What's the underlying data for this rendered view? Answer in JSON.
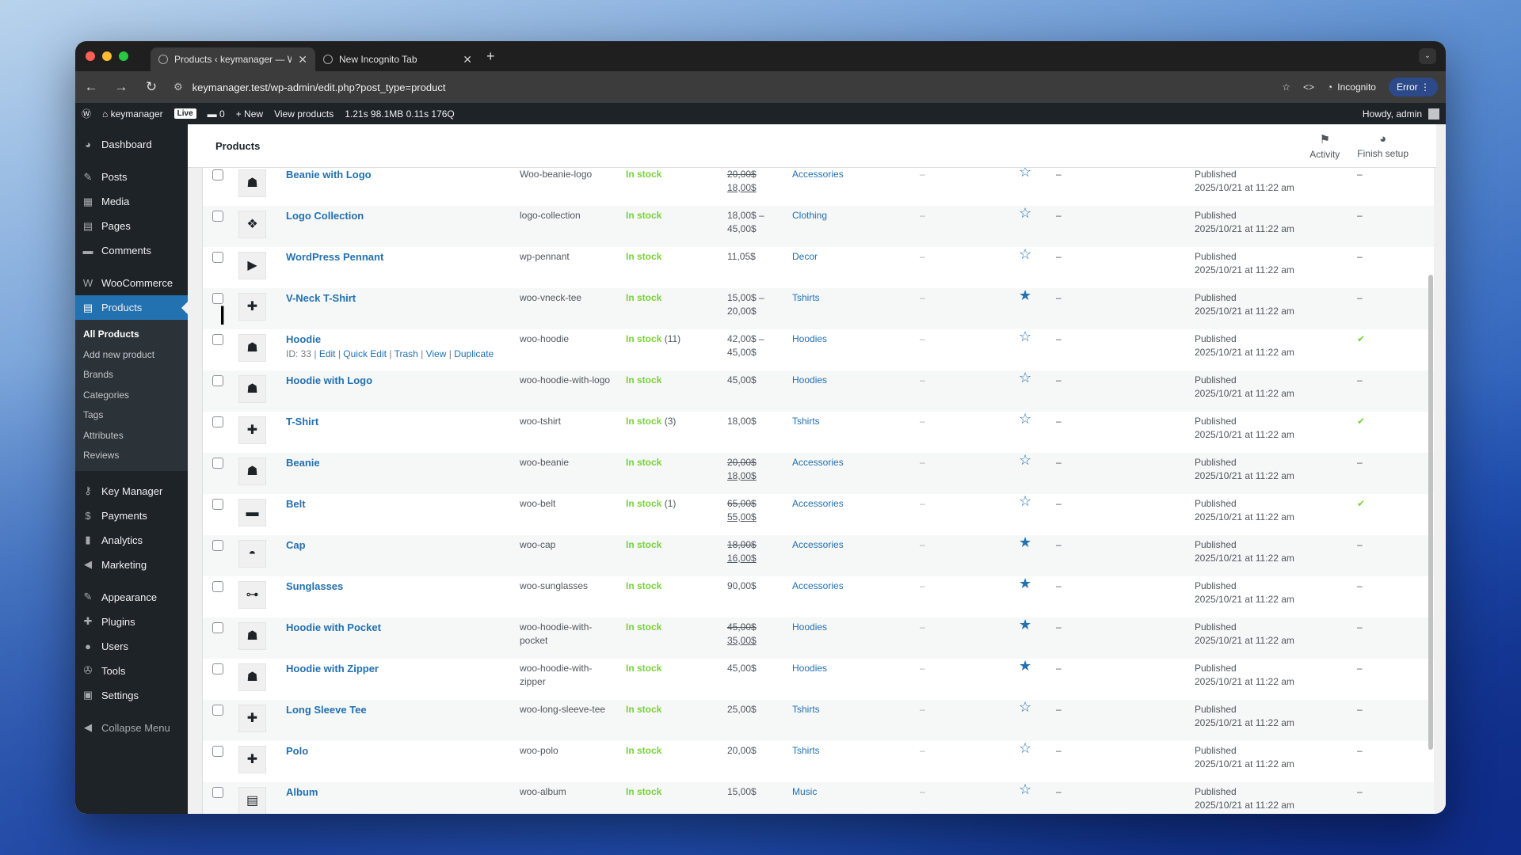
{
  "browser": {
    "tabs": [
      {
        "title": "Products ‹ keymanager — W…"
      },
      {
        "title": "New Incognito Tab"
      }
    ],
    "url": "keymanager.test/wp-admin/edit.php?post_type=product",
    "incognito_label": "Incognito",
    "error_label": "Error"
  },
  "adminbar": {
    "site": "keymanager",
    "live": "Live",
    "comments": "0",
    "new": "New",
    "view": "View products",
    "stats": "1.21s  98.1MB  0.11s  176Q",
    "howdy": "Howdy, admin"
  },
  "sidebar": {
    "groups": [
      [
        {
          "label": "Dashboard",
          "icon": "dashboard-icon",
          "glyph": "◕"
        }
      ],
      [
        {
          "label": "Posts",
          "icon": "pin-icon",
          "glyph": "✎"
        },
        {
          "label": "Media",
          "icon": "media-icon",
          "glyph": "▦"
        },
        {
          "label": "Pages",
          "icon": "pages-icon",
          "glyph": "▤"
        },
        {
          "label": "Comments",
          "icon": "comment-icon",
          "glyph": "▬"
        }
      ],
      [
        {
          "label": "WooCommerce",
          "icon": "woo-icon",
          "glyph": "W"
        },
        {
          "label": "Products",
          "icon": "archive-icon",
          "glyph": "▤",
          "current": true
        }
      ]
    ],
    "submenu": [
      "All Products",
      "Add new product",
      "Brands",
      "Categories",
      "Tags",
      "Attributes",
      "Reviews"
    ],
    "groups2": [
      [
        {
          "label": "Key Manager",
          "icon": "key-icon",
          "glyph": "⚷"
        },
        {
          "label": "Payments",
          "icon": "payments-icon",
          "glyph": "$"
        },
        {
          "label": "Analytics",
          "icon": "chart-icon",
          "glyph": "▮"
        },
        {
          "label": "Marketing",
          "icon": "megaphone-icon",
          "glyph": "◀"
        }
      ],
      [
        {
          "label": "Appearance",
          "icon": "brush-icon",
          "glyph": "✎"
        },
        {
          "label": "Plugins",
          "icon": "plugin-icon",
          "glyph": "✚"
        },
        {
          "label": "Users",
          "icon": "user-icon",
          "glyph": "●"
        },
        {
          "label": "Tools",
          "icon": "wrench-icon",
          "glyph": "✇"
        },
        {
          "label": "Settings",
          "icon": "settings-icon",
          "glyph": "▣"
        }
      ],
      [
        {
          "label": "Collapse Menu",
          "icon": "collapse-icon",
          "glyph": "◀"
        }
      ]
    ]
  },
  "header": {
    "title": "Products",
    "activity": "Activity",
    "finish": "Finish setup"
  },
  "row_actions": {
    "id": "ID: 33",
    "edit": "Edit",
    "quick": "Quick Edit",
    "trash": "Trash",
    "view": "View",
    "dup": "Duplicate"
  },
  "products": [
    {
      "name": "Beanie with Logo",
      "sku": "Woo-beanie-logo",
      "stock": "In stock",
      "stock_n": "",
      "price_old": "20,00$",
      "price": "18,00$",
      "cat": "Accessories",
      "featured": false,
      "last": "–",
      "thumb": "beanie-icon",
      "glyph": "☗"
    },
    {
      "name": "Logo Collection",
      "sku": "logo-collection",
      "stock": "In stock",
      "stock_n": "",
      "price": "18,00$ –",
      "price2": "45,00$",
      "cat": "Clothing",
      "featured": false,
      "last": "–",
      "thumb": "collection-icon",
      "glyph": "❖"
    },
    {
      "name": "WordPress Pennant",
      "sku": "wp-pennant",
      "stock": "In stock",
      "stock_n": "",
      "price": "11,05$",
      "cat": "Decor",
      "featured": false,
      "last": "–",
      "thumb": "pennant-icon",
      "glyph": "▶"
    },
    {
      "name": "V-Neck T-Shirt",
      "sku": "woo-vneck-tee",
      "stock": "In stock",
      "stock_n": "",
      "price": "15,00$ –",
      "price2": "20,00$",
      "cat": "Tshirts",
      "featured": true,
      "last": "–",
      "thumb": "tshirt-icon",
      "glyph": "✚"
    },
    {
      "name": "Hoodie",
      "sku": "woo-hoodie",
      "stock": "In stock",
      "stock_n": " (11)",
      "price": "42,00$ –",
      "price2": "45,00$",
      "cat": "Hoodies",
      "featured": false,
      "last": "✔",
      "thumb": "hoodie-icon",
      "glyph": "☗",
      "hover": true
    },
    {
      "name": "Hoodie with Logo",
      "sku": "woo-hoodie-with-logo",
      "stock": "In stock",
      "stock_n": "",
      "price": "45,00$",
      "cat": "Hoodies",
      "featured": false,
      "last": "–",
      "thumb": "hoodie-icon",
      "glyph": "☗"
    },
    {
      "name": "T-Shirt",
      "sku": "woo-tshirt",
      "stock": "In stock",
      "stock_n": " (3)",
      "price": "18,00$",
      "cat": "Tshirts",
      "featured": false,
      "last": "✔",
      "thumb": "tshirt-icon",
      "glyph": "✚"
    },
    {
      "name": "Beanie",
      "sku": "woo-beanie",
      "stock": "In stock",
      "stock_n": "",
      "price_old": "20,00$",
      "price": "18,00$",
      "cat": "Accessories",
      "featured": false,
      "last": "–",
      "thumb": "beanie-icon",
      "glyph": "☗"
    },
    {
      "name": "Belt",
      "sku": "woo-belt",
      "stock": "In stock",
      "stock_n": " (1)",
      "price_old": "65,00$",
      "price": "55,00$",
      "cat": "Accessories",
      "featured": false,
      "last": "✔",
      "thumb": "belt-icon",
      "glyph": "▬"
    },
    {
      "name": "Cap",
      "sku": "woo-cap",
      "stock": "In stock",
      "stock_n": "",
      "price_old": "18,00$",
      "price": "16,00$",
      "cat": "Accessories",
      "featured": true,
      "last": "–",
      "thumb": "cap-icon",
      "glyph": "◓"
    },
    {
      "name": "Sunglasses",
      "sku": "woo-sunglasses",
      "stock": "In stock",
      "stock_n": "",
      "price": "90,00$",
      "cat": "Accessories",
      "featured": true,
      "last": "–",
      "thumb": "sunglasses-icon",
      "glyph": "⊶"
    },
    {
      "name": "Hoodie with Pocket",
      "sku": "woo-hoodie-with-pocket",
      "stock": "In stock",
      "stock_n": "",
      "price_old": "45,00$",
      "price": "35,00$",
      "cat": "Hoodies",
      "featured": true,
      "last": "–",
      "thumb": "hoodie-icon",
      "glyph": "☗"
    },
    {
      "name": "Hoodie with Zipper",
      "sku": "woo-hoodie-with-zipper",
      "stock": "In stock",
      "stock_n": "",
      "price": "45,00$",
      "cat": "Hoodies",
      "featured": true,
      "last": "–",
      "thumb": "hoodie-icon",
      "glyph": "☗"
    },
    {
      "name": "Long Sleeve Tee",
      "sku": "woo-long-sleeve-tee",
      "stock": "In stock",
      "stock_n": "",
      "price": "25,00$",
      "cat": "Tshirts",
      "featured": false,
      "last": "–",
      "thumb": "longsleeve-icon",
      "glyph": "✚"
    },
    {
      "name": "Polo",
      "sku": "woo-polo",
      "stock": "In stock",
      "stock_n": "",
      "price": "20,00$",
      "cat": "Tshirts",
      "featured": false,
      "last": "–",
      "thumb": "polo-icon",
      "glyph": "✚"
    },
    {
      "name": "Album",
      "sku": "woo-album",
      "stock": "In stock",
      "stock_n": "",
      "price": "15,00$",
      "cat": "Music",
      "featured": false,
      "last": "–",
      "thumb": "album-icon",
      "glyph": "▤"
    }
  ],
  "tags_dash": "–",
  "type_dash": "–",
  "date_status": "Published",
  "date_value": "2025/10/21 at 11:22 am",
  "colors": {
    "accent": "#2271b1",
    "stock": "#7ad03a",
    "adminbar": "#1d2327"
  }
}
